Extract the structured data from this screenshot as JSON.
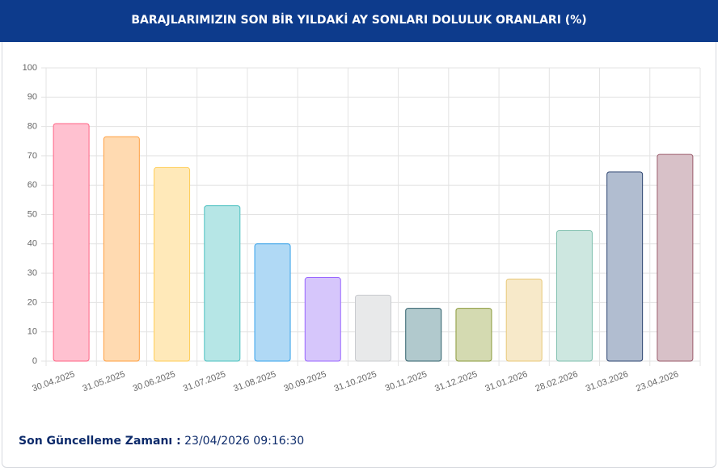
{
  "chart_data": {
    "type": "bar",
    "title": "BARAJLARIMIZIN SON BİR YILDAKİ AY SONLARI DOLULUK ORANLARI (%)",
    "categories": [
      "30.04.2025",
      "31.05.2025",
      "30.06.2025",
      "31.07.2025",
      "31.08.2025",
      "30.09.2025",
      "31.10.2025",
      "30.11.2025",
      "31.12.2025",
      "31.01.2026",
      "28.02.2026",
      "31.03.2026",
      "23.04.2026"
    ],
    "values": [
      81,
      76.5,
      66,
      53,
      40,
      28.5,
      22.5,
      18,
      18,
      28,
      44.5,
      64.5,
      70.5
    ],
    "colors": [
      "#ffc1d0",
      "#ffdab1",
      "#ffe9b9",
      "#b6e6e6",
      "#b0d9f5",
      "#d6c6fb",
      "#e8e9ea",
      "#b1c9cd",
      "#d4dab1",
      "#f7e9c9",
      "#cde7e0",
      "#b1bdd0",
      "#d8c1c8"
    ],
    "border_colors": [
      "#ff6384",
      "#ff9f40",
      "#ffcd56",
      "#4bc0c0",
      "#36a2eb",
      "#9966ff",
      "#c9cbcf",
      "#2f5f6a",
      "#8a9a3a",
      "#e8c878",
      "#7fbfae",
      "#2d4470",
      "#9a5a6a"
    ],
    "ylim": [
      0,
      100
    ],
    "yticks": [
      0,
      10,
      20,
      30,
      40,
      50,
      60,
      70,
      80,
      90,
      100
    ],
    "grid": true
  },
  "footer": {
    "label": "Son Güncelleme Zamanı :",
    "value": "23/04/2026 09:16:30"
  }
}
